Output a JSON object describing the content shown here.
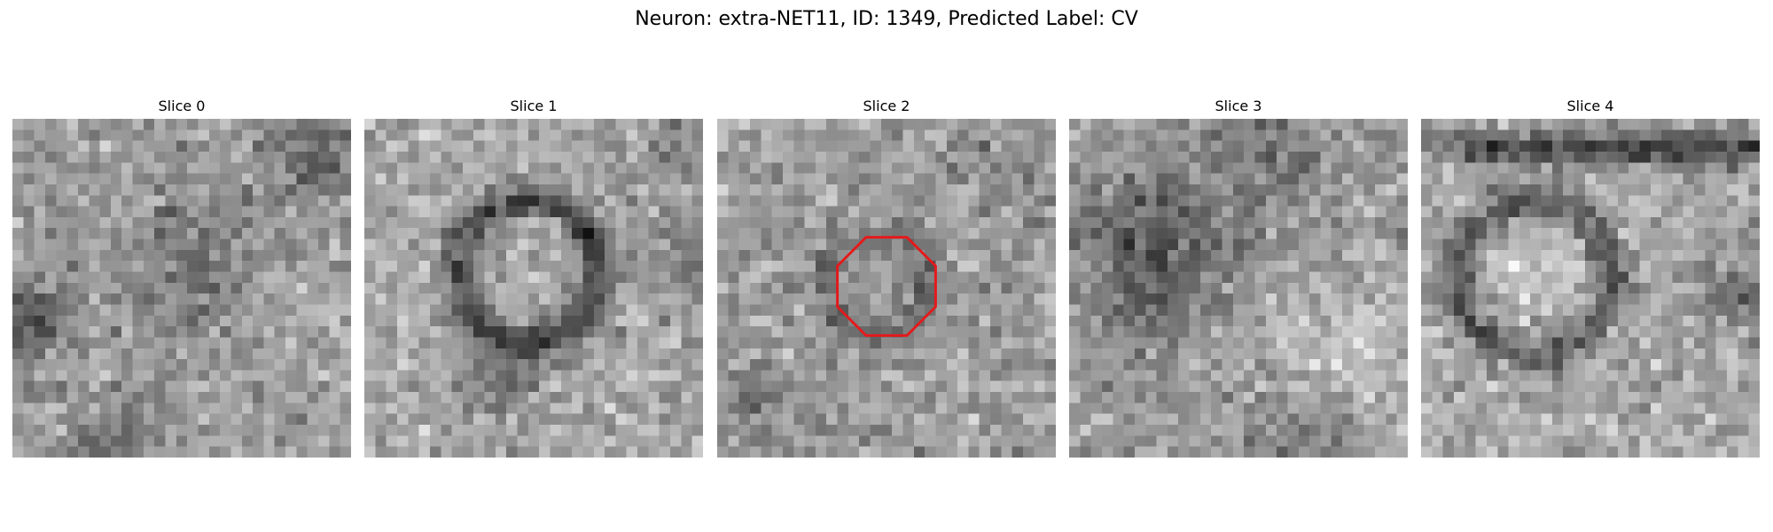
{
  "figure": {
    "suptitle": "Neuron: extra-NET11, ID: 1349, Predicted Label: CV",
    "colormap": "grayscale",
    "grid_size": 31,
    "panels": [
      {
        "title": "Slice 0",
        "highlight": false
      },
      {
        "title": "Slice 1",
        "highlight": false
      },
      {
        "title": "Slice 2",
        "highlight": true
      },
      {
        "title": "Slice 3",
        "highlight": false
      },
      {
        "title": "Slice 4",
        "highlight": false
      }
    ],
    "highlight_color": "#e31a1c",
    "highlight_shape": "octagon"
  }
}
